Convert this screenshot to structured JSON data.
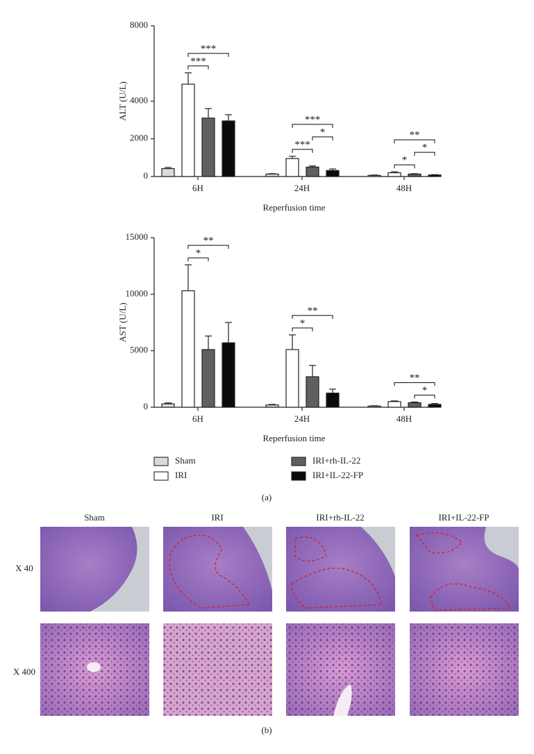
{
  "chart_data": [
    {
      "type": "bar",
      "y_label": "ALT (U/L)",
      "x_label": "Reperfusion time",
      "categories": [
        "6H",
        "24H",
        "48H"
      ],
      "series": [
        {
          "name": "Sham",
          "color": "#d7dcda",
          "values": [
            420,
            130,
            60
          ],
          "errors": [
            60,
            20,
            20
          ]
        },
        {
          "name": "IRI",
          "color": "#ffffff",
          "values": [
            4900,
            950,
            200
          ],
          "errors": [
            600,
            120,
            50
          ]
        },
        {
          "name": "IRI+rh-IL-22",
          "color": "#5e6160",
          "values": [
            3100,
            500,
            130
          ],
          "errors": [
            500,
            60,
            20
          ]
        },
        {
          "name": "IRI+IL-22-FP",
          "color": "#0a0a0a",
          "values": [
            2950,
            320,
            80
          ],
          "errors": [
            330,
            80,
            20
          ]
        }
      ],
      "ylim": [
        0,
        8000
      ],
      "yticks": [
        0,
        2000,
        4000,
        8000
      ],
      "annotations": [
        {
          "text": "***",
          "category": 0,
          "series": [
            1,
            2
          ]
        },
        {
          "text": "***",
          "category": 0,
          "series": [
            1,
            3
          ]
        },
        {
          "text": "***",
          "category": 1,
          "series": [
            1,
            2
          ]
        },
        {
          "text": "*",
          "category": 1,
          "series": [
            2,
            3
          ]
        },
        {
          "text": "***",
          "category": 1,
          "series": [
            1,
            3
          ]
        },
        {
          "text": "*",
          "category": 2,
          "series": [
            1,
            2
          ]
        },
        {
          "text": "*",
          "category": 2,
          "series": [
            2,
            3
          ]
        },
        {
          "text": "**",
          "category": 2,
          "series": [
            1,
            3
          ]
        }
      ]
    },
    {
      "type": "bar",
      "y_label": "AST (U/L)",
      "x_label": "Reperfusion time",
      "categories": [
        "6H",
        "24H",
        "48H"
      ],
      "series": [
        {
          "name": "Sham",
          "color": "#d7dcda",
          "values": [
            300,
            200,
            100
          ],
          "errors": [
            80,
            50,
            30
          ]
        },
        {
          "name": "IRI",
          "color": "#ffffff",
          "values": [
            10300,
            5100,
            500
          ],
          "errors": [
            2300,
            1300,
            60
          ]
        },
        {
          "name": "IRI+rh-IL-22",
          "color": "#5e6160",
          "values": [
            5100,
            2700,
            400
          ],
          "errors": [
            1200,
            1000,
            60
          ]
        },
        {
          "name": "IRI+IL-22-FP",
          "color": "#0a0a0a",
          "values": [
            5700,
            1250,
            250
          ],
          "errors": [
            1800,
            350,
            80
          ]
        }
      ],
      "ylim": [
        0,
        15000
      ],
      "yticks": [
        0,
        5000,
        10000,
        15000
      ],
      "annotations": [
        {
          "text": "*",
          "category": 0,
          "series": [
            1,
            2
          ]
        },
        {
          "text": "**",
          "category": 0,
          "series": [
            1,
            3
          ]
        },
        {
          "text": "*",
          "category": 1,
          "series": [
            1,
            2
          ]
        },
        {
          "text": "**",
          "category": 1,
          "series": [
            1,
            3
          ]
        },
        {
          "text": "*",
          "category": 2,
          "series": [
            2,
            3
          ]
        },
        {
          "text": "**",
          "category": 2,
          "series": [
            1,
            3
          ]
        }
      ]
    }
  ],
  "panel_labels": {
    "a": "(a)",
    "b": "(b)"
  },
  "histology": {
    "columns": [
      "Sham",
      "IRI",
      "IRI+rh-IL-22",
      "IRI+IL-22-FP"
    ],
    "rows": [
      "X 40",
      "X 400"
    ]
  }
}
